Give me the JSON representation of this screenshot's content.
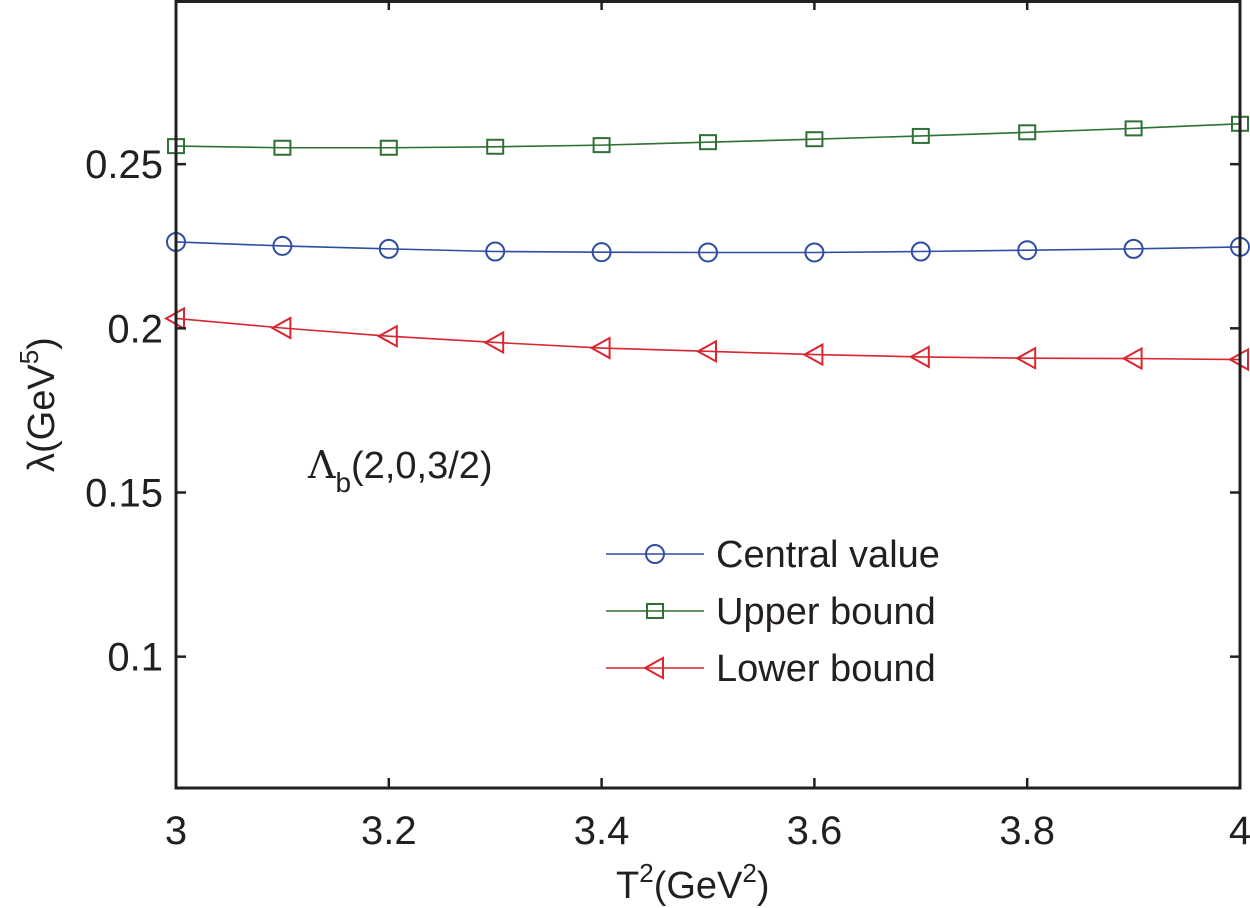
{
  "chart_data": {
    "type": "line",
    "title": "",
    "xlabel": {
      "base": "T",
      "sup": "2",
      "unit_open": "(GeV",
      "unit_sup": "2",
      "unit_close": ")"
    },
    "ylabel": {
      "base": "λ(GeV",
      "sup": "5",
      "close": ")"
    },
    "xlim": [
      3,
      4
    ],
    "ylim": [
      0.06,
      0.3
    ],
    "xticks": [
      3,
      3.2,
      3.4,
      3.6,
      3.8,
      4
    ],
    "xtick_labels": [
      "3",
      "3.2",
      "3.4",
      "3.6",
      "3.8",
      "4"
    ],
    "yticks": [
      0.1,
      0.15,
      0.2,
      0.25
    ],
    "ytick_labels": [
      "0.1",
      "0.15",
      "0.2",
      "0.25"
    ],
    "grid": false,
    "legend_position": "lower-right",
    "annotation": {
      "main": "Λ",
      "sub": "b",
      "rest": "(2,0,3/2)"
    },
    "x": [
      3.0,
      3.1,
      3.2,
      3.3,
      3.4,
      3.5,
      3.6,
      3.7,
      3.8,
      3.9,
      4.0
    ],
    "series": [
      {
        "name": "Central value",
        "color": "#2e4ea3",
        "marker": "circle",
        "values": [
          0.2263,
          0.2251,
          0.2242,
          0.2234,
          0.2232,
          0.2231,
          0.2231,
          0.2234,
          0.2238,
          0.2242,
          0.2248
        ]
      },
      {
        "name": "Upper bound",
        "color": "#2f7035",
        "marker": "square",
        "values": [
          0.2555,
          0.255,
          0.255,
          0.2553,
          0.2558,
          0.2567,
          0.2576,
          0.2586,
          0.2597,
          0.2609,
          0.2623
        ]
      },
      {
        "name": "Lower bound",
        "color": "#d9262f",
        "marker": "triangle-left",
        "values": [
          0.203,
          0.2001,
          0.1976,
          0.1957,
          0.194,
          0.193,
          0.192,
          0.1913,
          0.1909,
          0.1908,
          0.1905
        ]
      }
    ]
  }
}
